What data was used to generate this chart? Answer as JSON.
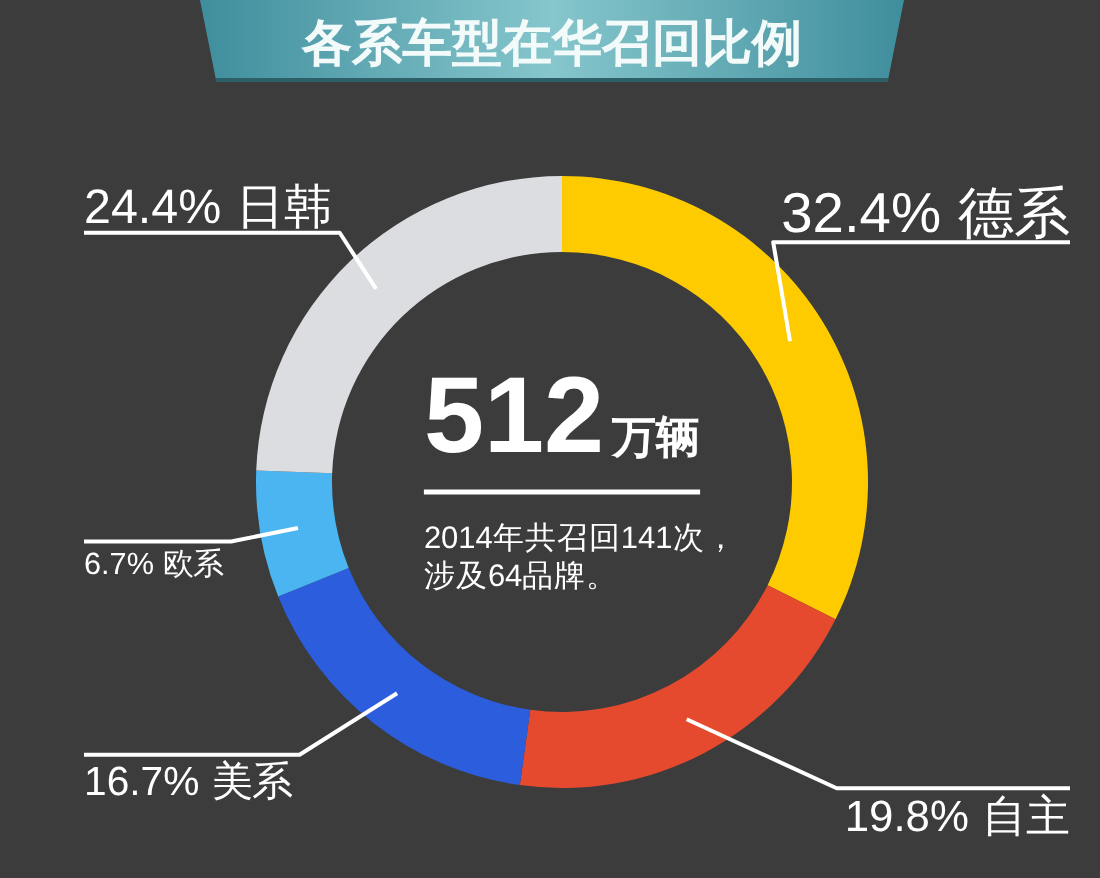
{
  "chart_data": {
    "type": "donut",
    "title": "各系车型在华召回比例",
    "categories": [
      "德系",
      "自主",
      "美系",
      "欧系",
      "日韩"
    ],
    "values": [
      32.4,
      19.8,
      16.7,
      6.7,
      24.4
    ],
    "colors": [
      "#fdcb00",
      "#e64a2e",
      "#2c5ddd",
      "#4bb5f2",
      "#dcdde1"
    ],
    "value_labels": [
      "32.4%",
      "19.8%",
      "16.7%",
      "6.7%",
      "24.4%"
    ],
    "annotations": [
      "512",
      "万辆",
      "2014年共召回141次，",
      "涉及64品牌。"
    ]
  }
}
